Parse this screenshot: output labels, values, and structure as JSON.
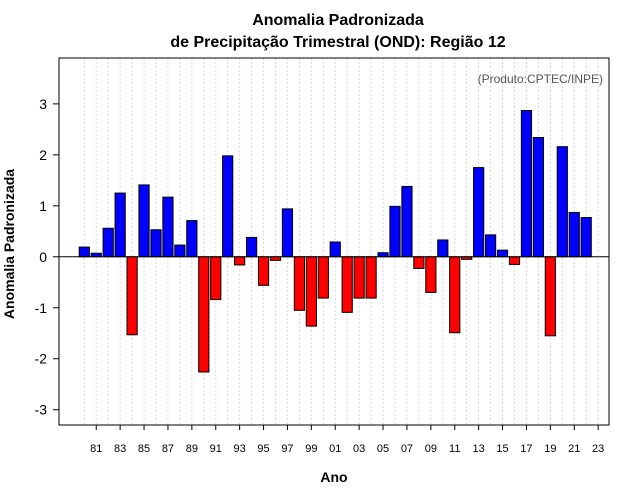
{
  "chart_data": {
    "type": "bar",
    "title_line1": "Anomalia Padronizada",
    "title_line2": "de Precipitação Trimestral (OND): Região 12",
    "credit": "(Produto:CPTEC/INPE)",
    "xlabel": "Ano",
    "ylabel": "Anomalia Padronizada",
    "ylim": [
      -3.3,
      3.9
    ],
    "yticks": [
      -3,
      -2,
      -1,
      0,
      1,
      2,
      3
    ],
    "xtick_labels": [
      "81",
      "83",
      "85",
      "87",
      "89",
      "91",
      "93",
      "95",
      "97",
      "99",
      "01",
      "03",
      "05",
      "07",
      "09",
      "11",
      "13",
      "15",
      "17",
      "19",
      "21",
      "23"
    ],
    "years": [
      "1980",
      "1981",
      "1982",
      "1983",
      "1984",
      "1985",
      "1986",
      "1987",
      "1988",
      "1989",
      "1990",
      "1991",
      "1992",
      "1993",
      "1994",
      "1995",
      "1996",
      "1997",
      "1998",
      "1999",
      "2000",
      "2001",
      "2002",
      "2003",
      "2004",
      "2005",
      "2006",
      "2007",
      "2008",
      "2009",
      "2010",
      "2011",
      "2012",
      "2013",
      "2014",
      "2015",
      "2016",
      "2017",
      "2018",
      "2019",
      "2020",
      "2021",
      "2022",
      "2023"
    ],
    "values": [
      0.19,
      0.07,
      0.56,
      1.25,
      -1.53,
      1.41,
      0.53,
      1.17,
      0.23,
      0.71,
      -2.26,
      -0.84,
      1.98,
      -0.16,
      0.38,
      -0.56,
      -0.07,
      0.94,
      -1.05,
      -1.36,
      -0.81,
      0.29,
      -1.09,
      -0.81,
      -0.81,
      0.08,
      0.99,
      1.38,
      -0.23,
      -0.7,
      0.33,
      -1.49,
      -0.05,
      1.75,
      0.43,
      0.13,
      -0.15,
      2.87,
      2.34,
      -1.55,
      2.16,
      0.87,
      0.77,
      null
    ],
    "colors": {
      "positive": "#0000ff",
      "negative": "#ff0000",
      "grid": "#d9d9d9",
      "axis": "#000000"
    }
  }
}
